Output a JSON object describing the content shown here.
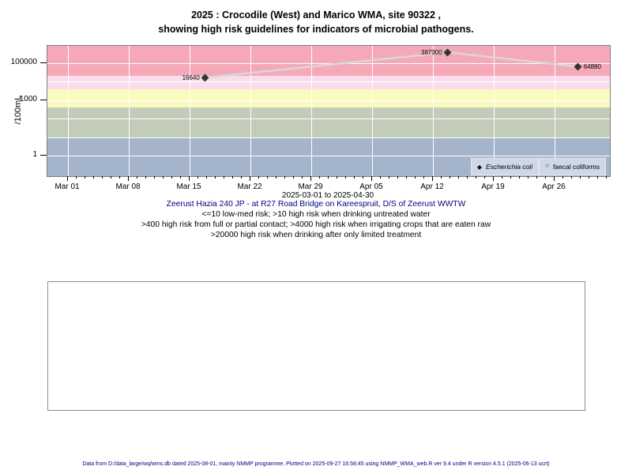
{
  "title": {
    "line1": "2025 : Crocodile (West) and Marico WMA, site 90322 ,",
    "line2": "showing high risk guidelines for indicators of microbial pathogens."
  },
  "chart_data": {
    "type": "line",
    "y_scale": "log10",
    "ylabel": "/100mL",
    "xlabel": "2025-03-01 to 2025-04-30",
    "x_range": [
      "2025-03-01",
      "2025-04-30"
    ],
    "ylim_log10": [
      -1.1,
      5.9
    ],
    "grid": "white-on-bands",
    "y_ticks": [
      {
        "value": 1,
        "label": "1"
      },
      {
        "value": 1000,
        "label": "1000"
      },
      {
        "value": 100000,
        "label": "100000"
      }
    ],
    "y_gridline_values": [
      1,
      10,
      100,
      1000,
      10000,
      100000
    ],
    "x_ticks": [
      {
        "day": 0,
        "label": "Mar 01"
      },
      {
        "day": 7,
        "label": "Mar 08"
      },
      {
        "day": 14,
        "label": "Mar 15"
      },
      {
        "day": 21,
        "label": "Mar 22"
      },
      {
        "day": 28,
        "label": "Mar 29"
      },
      {
        "day": 35,
        "label": "Apr 05"
      },
      {
        "day": 42,
        "label": "Apr 12"
      },
      {
        "day": 49,
        "label": "Apr 19"
      },
      {
        "day": 56,
        "label": "Apr 26"
      }
    ],
    "x_minor_tick_last_day": 62,
    "series": [
      {
        "name": "Escherichia coli",
        "marker": "filled-diamond",
        "marker_color": "#333333",
        "line_color": "#d8d8d8",
        "points": [
          {
            "day": 15.8,
            "value": 16640,
            "label": "16640",
            "label_side": "left"
          },
          {
            "day": 43.7,
            "value": 387300,
            "label": "387300",
            "label_side": "left"
          },
          {
            "day": 58.7,
            "value": 64880,
            "label": "64880",
            "label_side": "right"
          }
        ]
      },
      {
        "name": "faecal coliforms",
        "marker": "open-circle",
        "points": []
      }
    ],
    "guideline_bands": [
      {
        "min": 20000,
        "max": null,
        "color": "#f5a9b8",
        "meaning": ">20000 high risk when drinking after only limited treatment"
      },
      {
        "min": 4000,
        "max": 20000,
        "color": "#fadceb",
        "meaning": ">4000 high risk when irrigating crops that are eaten raw"
      },
      {
        "min": 400,
        "max": 4000,
        "color": "#fafac0",
        "meaning": ">400 high risk from full or partial contact"
      },
      {
        "min": 10,
        "max": 400,
        "color": "#c2ccb8",
        "meaning": ">10 high risk when drinking untreated water"
      },
      {
        "min": null,
        "max": 10,
        "color": "#a3b4cb",
        "meaning": "<=10 low-med risk"
      }
    ],
    "legend_position": "bottom-right"
  },
  "notes": {
    "site": "Zeerust Hazia 240 JP - at R27 Road Bridge on Kareespruit, D/S of Zeerust WWTW",
    "risk1": "<=10 low-med risk; >10 high risk when drinking untreated water",
    "risk2": ">400 high risk from full or partial contact; >4000 high risk when irrigating crops that are eaten raw",
    "risk3": ">20000 high risk when drinking after only limited treatment"
  },
  "footer": "Data from D:/data_large/wq/wms.db dated 2025-08-01, mainly NMMP programme. Plotted on 2025-09-27 16:58:45 using NMMP_WMA_web.R ver 9.4 under R version 4.5.1 (2025-06-13 ucrt)",
  "colors": {
    "plot_border": "#7f7f7f",
    "gridline": "#ffffff",
    "legend_fill": "#cdd7e5",
    "site_text": "#000080",
    "footer_text": "#00008b"
  }
}
